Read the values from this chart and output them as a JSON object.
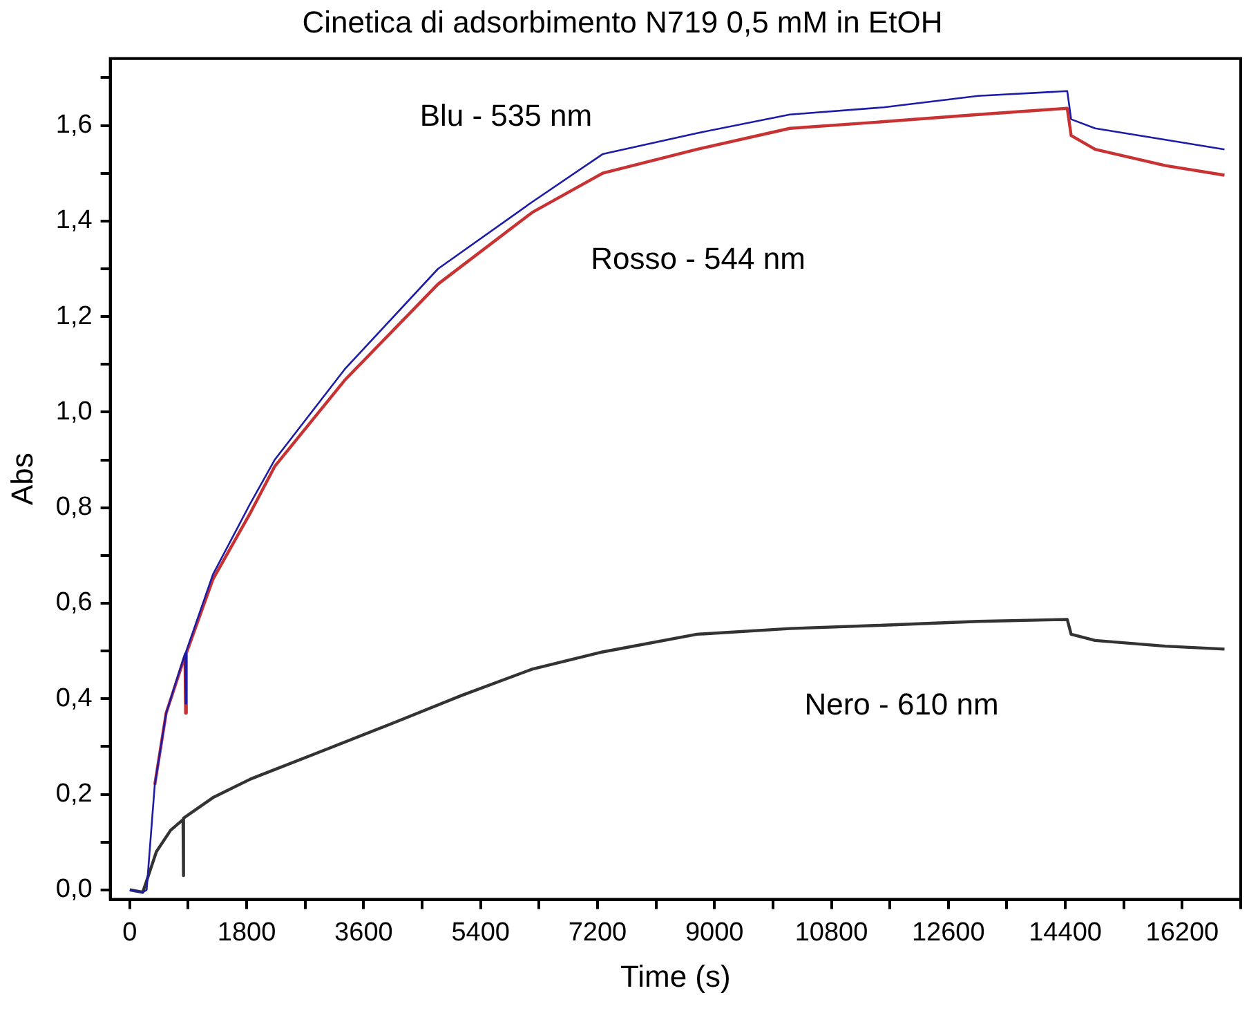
{
  "chart_data": {
    "type": "line",
    "title": "Cinetica di adsorbimento N719 0,5 mM in EtOH",
    "xlabel": "Time (s)",
    "ylabel": "Abs",
    "xlim": [
      -300,
      17100
    ],
    "ylim": [
      -0.02,
      1.74
    ],
    "xticks": [
      0,
      {
        "value": 900,
        "label": null
      },
      1800,
      {
        "value": 2700,
        "label": null
      },
      3600,
      {
        "value": 4500,
        "label": null
      },
      5400,
      {
        "value": 6300,
        "label": null
      },
      7200,
      {
        "value": 8100,
        "label": null
      },
      9000,
      {
        "value": 9900,
        "label": null
      },
      10800,
      {
        "value": 11700,
        "label": null
      },
      12600,
      {
        "value": 13500,
        "label": null
      },
      14400,
      {
        "value": 15300,
        "label": null
      },
      16200,
      {
        "value": 17100,
        "label": null
      }
    ],
    "yticks": [
      {
        "value": 0,
        "label": "0,0"
      },
      {
        "value": 0.1,
        "label": null
      },
      {
        "value": 0.2,
        "label": "0,2"
      },
      {
        "value": 0.3,
        "label": null
      },
      {
        "value": 0.4,
        "label": "0,4"
      },
      {
        "value": 0.5,
        "label": null
      },
      {
        "value": 0.6,
        "label": "0,6"
      },
      {
        "value": 0.7,
        "label": null
      },
      {
        "value": 0.8,
        "label": "0,8"
      },
      {
        "value": 0.9,
        "label": null
      },
      {
        "value": 1.0,
        "label": "1,0"
      },
      {
        "value": 1.1,
        "label": null
      },
      {
        "value": 1.2,
        "label": "1,2"
      },
      {
        "value": 1.3,
        "label": null
      },
      {
        "value": 1.4,
        "label": "1,4"
      },
      {
        "value": 1.5,
        "label": null
      },
      {
        "value": 1.6,
        "label": "1,6"
      },
      {
        "value": 1.7,
        "label": null
      }
    ],
    "series": [
      {
        "name": "Blu - 535 nm",
        "color": "#1c1ca8",
        "x": [
          0,
          200,
          260,
          385,
          560,
          850,
          860,
          870,
          1280,
          1860,
          2230,
          3310,
          4745,
          6195,
          7278,
          8730,
          10160,
          11610,
          13060,
          14430,
          14490,
          14860,
          15940,
          16850
        ],
        "values": [
          0.0,
          -0.005,
          0.0,
          0.22,
          0.37,
          0.495,
          0.39,
          0.5,
          0.66,
          0.81,
          0.9,
          1.09,
          1.3,
          1.44,
          1.54,
          1.584,
          1.623,
          1.638,
          1.662,
          1.672,
          1.613,
          1.594,
          1.57,
          1.55
        ]
      },
      {
        "name": "Rosso - 544 nm",
        "color": "#c83232",
        "x": [
          385,
          560,
          850,
          860,
          870,
          1280,
          1860,
          2230,
          3310,
          4745,
          6195,
          7278,
          8730,
          10160,
          11610,
          13060,
          14430,
          14490,
          14860,
          15940,
          16850
        ],
        "values": [
          0.22,
          0.37,
          0.49,
          0.37,
          0.495,
          0.65,
          0.79,
          0.886,
          1.067,
          1.268,
          1.418,
          1.5,
          1.55,
          1.594,
          1.608,
          1.623,
          1.636,
          1.579,
          1.55,
          1.516,
          1.496
        ]
      },
      {
        "name": "Nero - 610 nm",
        "color": "#333333",
        "x": [
          0,
          200,
          280,
          410,
          630,
          820,
          825,
          830,
          1280,
          1860,
          2950,
          4030,
          5110,
          6195,
          7278,
          8730,
          10160,
          11610,
          13060,
          14430,
          14490,
          14860,
          15940,
          16850
        ],
        "values": [
          0.0,
          -0.005,
          0.027,
          0.08,
          0.125,
          0.147,
          0.03,
          0.15,
          0.193,
          0.232,
          0.29,
          0.348,
          0.407,
          0.462,
          0.498,
          0.535,
          0.547,
          0.554,
          0.562,
          0.566,
          0.535,
          0.522,
          0.51,
          0.504
        ]
      }
    ]
  }
}
